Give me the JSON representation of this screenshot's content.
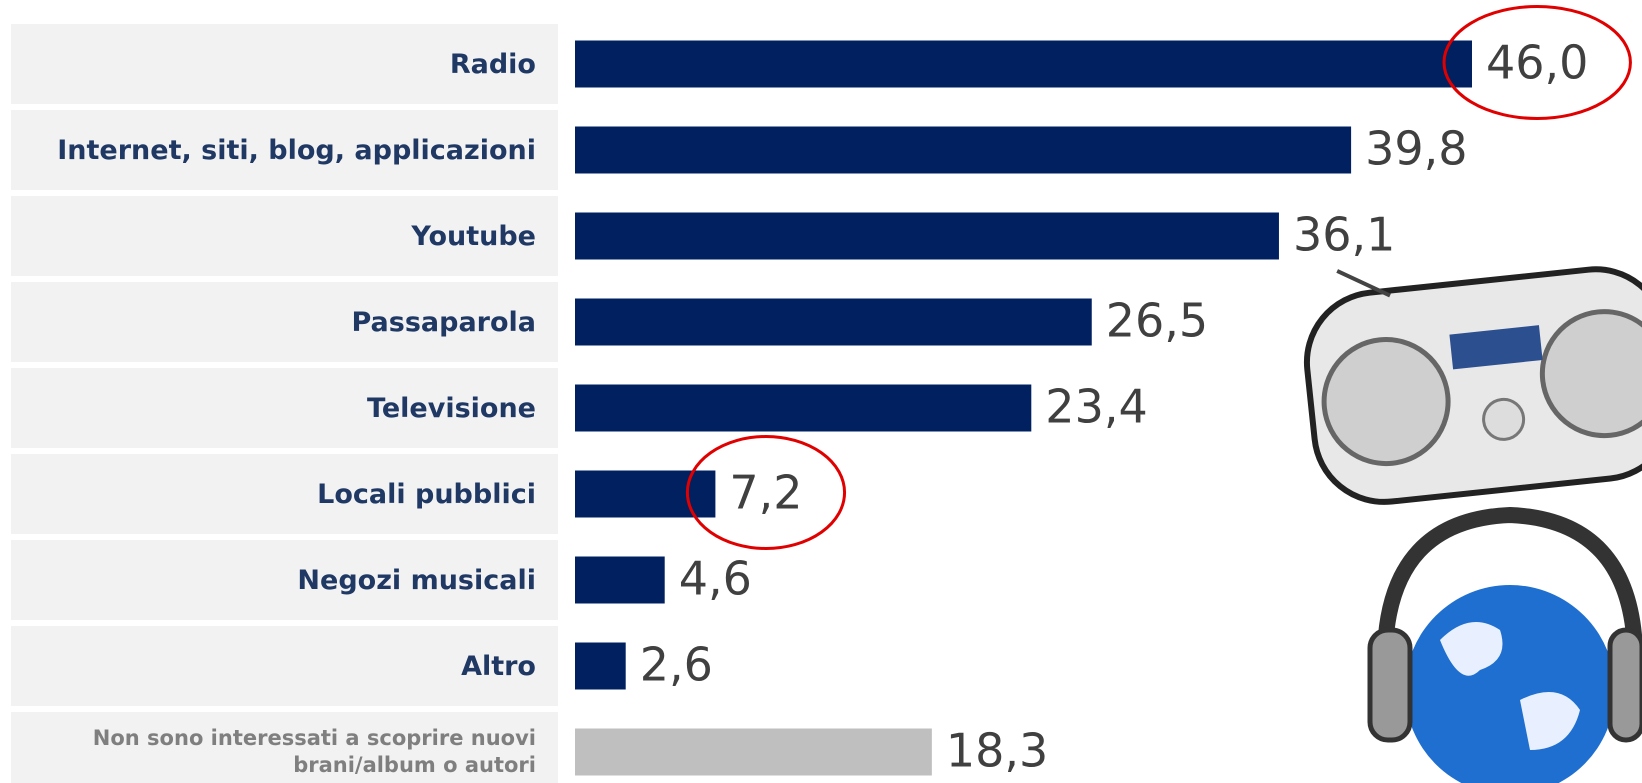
{
  "chart_data": {
    "type": "bar",
    "categories": [
      "Radio",
      "Internet, siti, blog, applicazioni",
      "Youtube",
      "Passaparola",
      "Televisione",
      "Locali pubblici",
      "Negozi musicali",
      "Altro",
      "Non sono interessati a scoprire nuovi brani/album o autori"
    ],
    "values": [
      46.0,
      39.8,
      36.1,
      26.5,
      23.4,
      7.2,
      4.6,
      2.6,
      18.3
    ],
    "value_labels": [
      "46,0",
      "39,8",
      "36,1",
      "26,5",
      "23,4",
      "7,2",
      "4,6",
      "2,6",
      "18,3"
    ],
    "colors": [
      "#002060",
      "#002060",
      "#002060",
      "#002060",
      "#002060",
      "#002060",
      "#002060",
      "#002060",
      "#bfbfbf"
    ],
    "highlighted": [
      0,
      5
    ],
    "highlight_color": "#e00000"
  }
}
